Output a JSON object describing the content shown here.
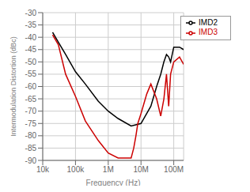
{
  "chart_data": {
    "type": "line",
    "xlabel": "Frequency (Hz)",
    "ylabel": "Intermodulation Distortion (dBc)",
    "log": "x",
    "grid": true,
    "legend": "upper right",
    "xlim": [
      10000,
      200000000
    ],
    "ylim": [
      -90,
      -30
    ],
    "yticks": [
      -90,
      -85,
      -80,
      -75,
      -70,
      -65,
      -60,
      -55,
      -50,
      -45,
      -40,
      -35,
      -30
    ],
    "xticks": [
      {
        "value": 10000,
        "label": "10k"
      },
      {
        "value": 100000,
        "label": "100k"
      },
      {
        "value": 1000000,
        "label": "1M"
      },
      {
        "value": 10000000,
        "label": "10M"
      },
      {
        "value": 100000000,
        "label": "100M"
      }
    ],
    "series": [
      {
        "name": "IMD2",
        "color": "#000000",
        "x": [
          20000,
          30000,
          50000,
          100000,
          200000,
          500000,
          1000000,
          2000000,
          5000000,
          10000000,
          20000000,
          30000000,
          40000000,
          50000000,
          60000000,
          70000000,
          80000000,
          100000000,
          150000000,
          200000000
        ],
        "values": [
          -38,
          -42,
          -47,
          -54,
          -59,
          -66,
          -70,
          -73,
          -76,
          -75,
          -68,
          -60,
          -55,
          -50,
          -47,
          -48,
          -50,
          -44,
          -44,
          -45
        ]
      },
      {
        "name": "IMD3",
        "color": "#cc0000",
        "x": [
          20000,
          30000,
          50000,
          100000,
          200000,
          500000,
          1000000,
          2000000,
          3000000,
          5000000,
          6000000,
          7000000,
          8000000,
          10000000,
          15000000,
          20000000,
          30000000,
          40000000,
          50000000,
          60000000,
          70000000,
          80000000,
          100000000,
          150000000,
          200000000
        ],
        "values": [
          -39,
          -43,
          -55,
          -64,
          -74,
          -82,
          -87,
          -89,
          -89,
          -89,
          -85,
          -80,
          -75,
          -71,
          -63,
          -59,
          -65,
          -72,
          -65,
          -55,
          -68,
          -55,
          -50,
          -48,
          -51
        ]
      }
    ]
  }
}
